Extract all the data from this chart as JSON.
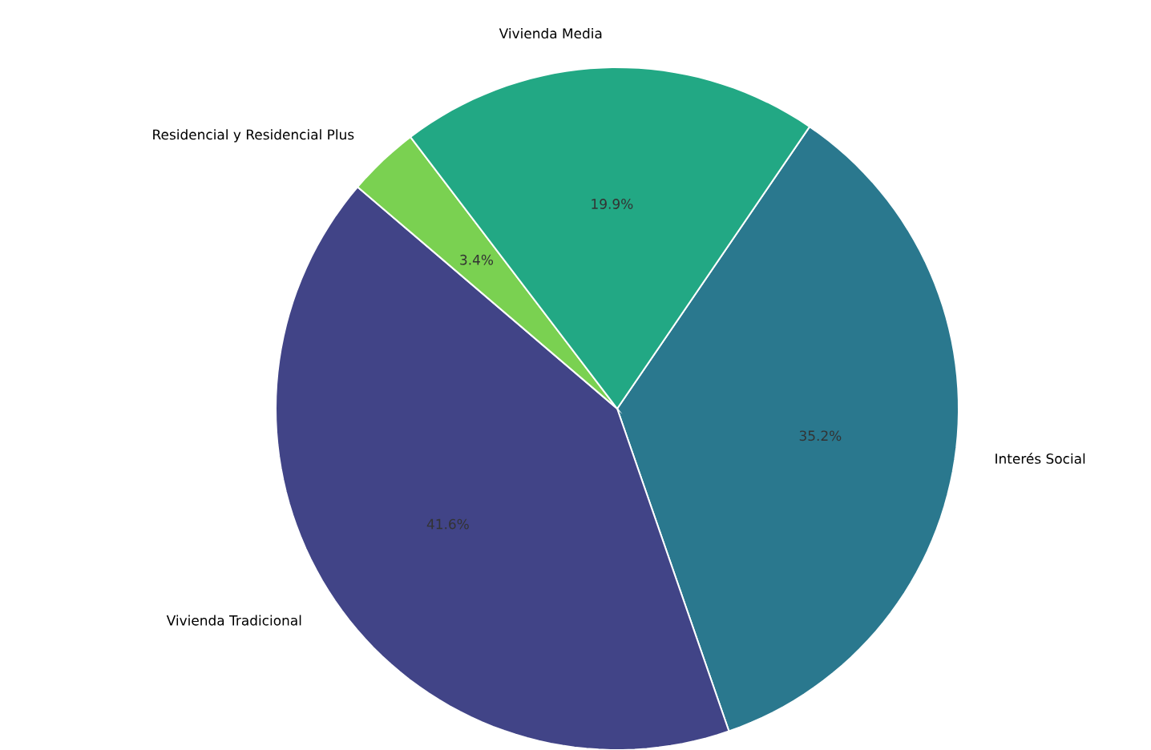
{
  "chart_data": {
    "type": "pie",
    "categories": [
      "Interés Social",
      "Vivienda Tradicional",
      "Residencial y Residencial Plus",
      "Vivienda Media"
    ],
    "values": [
      35.2,
      41.6,
      3.4,
      19.9
    ],
    "colors": [
      "#2a788e",
      "#414487",
      "#7ad151",
      "#22a884"
    ],
    "value_labels": [
      "35.2%",
      "41.6%",
      "3.4%",
      "19.9%"
    ]
  }
}
